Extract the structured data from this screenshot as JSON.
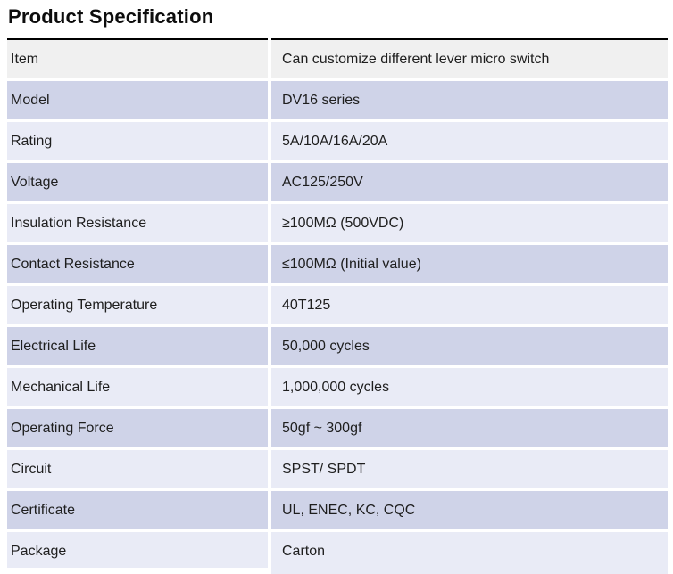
{
  "page_title": "Product Specification",
  "table": {
    "rows": [
      {
        "label": "Item",
        "value": "Can customize different lever micro switch"
      },
      {
        "label": "Model",
        "value": "DV16 series"
      },
      {
        "label": "Rating",
        "value": "5A/10A/16A/20A"
      },
      {
        "label": "Voltage",
        "value": "AC125/250V"
      },
      {
        "label": "Insulation Resistance",
        "value": "≥100MΩ (500VDC)"
      },
      {
        "label": "Contact Resistance",
        "value": "≤100MΩ (Initial value)"
      },
      {
        "label": "Operating Temperature",
        "value": "40T125"
      },
      {
        "label": "Electrical Life",
        "value": "50,000 cycles"
      },
      {
        "label": "Mechanical Life",
        "value": "1,000,000 cycles"
      },
      {
        "label": "Operating Force",
        "value": "50gf ~ 300gf"
      },
      {
        "label": "Circuit",
        "value": "SPST/ SPDT"
      },
      {
        "label": "Certificate",
        "value": "UL, ENEC, KC, CQC"
      },
      {
        "label": "Package",
        "value": "Carton"
      }
    ],
    "colors": {
      "header_row_bg": "#f0f0f0",
      "row_dark_bg": "#cfd3e8",
      "row_light_bg": "#e9ebf6",
      "top_border": "#000000"
    }
  }
}
